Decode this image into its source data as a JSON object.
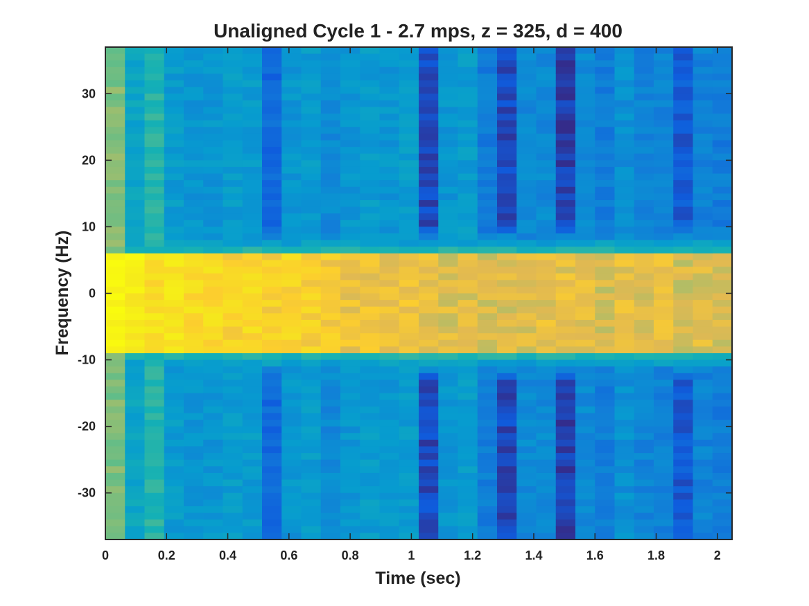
{
  "chart_data": {
    "type": "heatmap",
    "title": "Unaligned Cycle 1 - 2.7 mps, z = 325, d = 400",
    "xlabel": "Time (sec)",
    "ylabel": "Frequency (Hz)",
    "xlim": [
      0,
      2.048
    ],
    "ylim": [
      -37,
      37
    ],
    "colormap": "parula",
    "grid": false,
    "x_ticks": [
      0,
      0.2,
      0.4,
      0.6,
      0.8,
      1,
      1.2,
      1.4,
      1.6,
      1.8,
      2
    ],
    "x_tick_labels": [
      "0",
      "0.2",
      "0.4",
      "0.6",
      "0.8",
      "1",
      "1.2",
      "1.4",
      "1.6",
      "1.8",
      "2"
    ],
    "y_ticks": [
      30,
      20,
      10,
      0,
      -10,
      -20,
      -30
    ],
    "y_tick_labels": [
      "30",
      "20",
      "10",
      "0",
      "-10",
      "-20",
      "-30"
    ],
    "time_bin_sec": 0.064,
    "time_bins": 32,
    "freq_bin_hz": 1,
    "freq_bins": 74,
    "column_background": [
      0.55,
      0.34,
      0.42,
      0.3,
      0.28,
      0.28,
      0.3,
      0.3,
      0.14,
      0.28,
      0.3,
      0.24,
      0.28,
      0.3,
      0.28,
      0.3,
      0.06,
      0.28,
      0.3,
      0.2,
      0.06,
      0.24,
      0.24,
      0.04,
      0.24,
      0.2,
      0.26,
      0.22,
      0.22,
      0.1,
      0.22,
      0.2
    ],
    "band_frequency_range_hz": [
      -9,
      6
    ],
    "band_intensity": [
      0.97,
      0.93,
      0.87,
      0.88,
      0.85,
      0.84,
      0.82,
      0.83,
      0.8,
      0.82,
      0.8,
      0.78,
      0.74,
      0.74,
      0.74,
      0.75,
      0.72,
      0.7,
      0.7,
      0.68,
      0.7,
      0.7,
      0.72,
      0.72,
      0.72,
      0.68,
      0.72,
      0.7,
      0.72,
      0.68,
      0.7,
      0.68
    ],
    "value_range": [
      0,
      1
    ]
  }
}
